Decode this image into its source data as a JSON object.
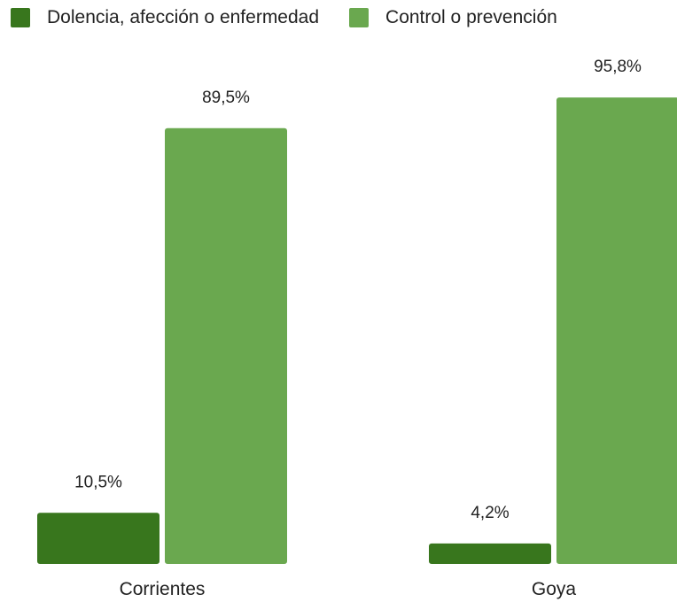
{
  "chart_data": {
    "type": "bar",
    "categories": [
      "Corrientes",
      "Goya"
    ],
    "series": [
      {
        "name": "Dolencia, afección o enfermedad",
        "values": [
          10.5,
          4.2
        ],
        "labels": [
          "10,5%",
          "4,2%"
        ],
        "color": "#38761d"
      },
      {
        "name": "Control o prevención",
        "values": [
          89.5,
          95.8
        ],
        "labels": [
          "89,5%",
          "95,8%"
        ],
        "color": "#6aa84f"
      }
    ],
    "title": "",
    "xlabel": "",
    "ylabel": "",
    "ylim": [
      0,
      100
    ],
    "grid": false,
    "legend_position": "top-left"
  }
}
